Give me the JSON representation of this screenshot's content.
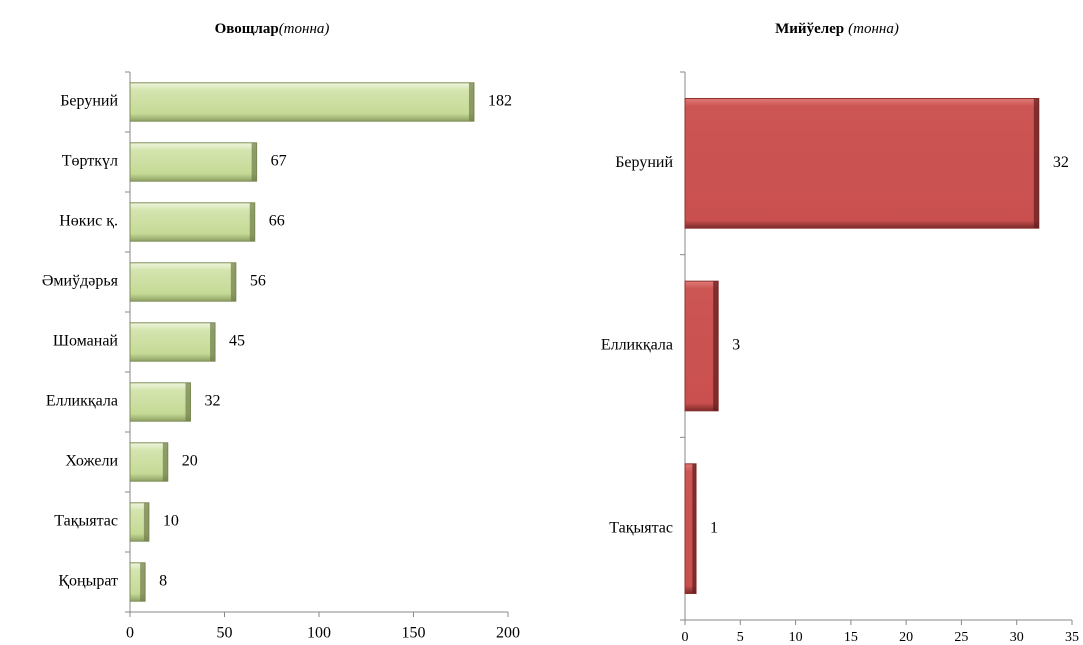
{
  "chart_data": [
    {
      "type": "bar",
      "title": "Овощлар",
      "subtitle": "(тонна)",
      "categories": [
        "Беруний",
        "Төрткүл",
        "Нөкис қ.",
        "Әмиўдәрья",
        "Шоманай",
        "Елликқала",
        "Хожели",
        "Тақыятас",
        "Қоңырат"
      ],
      "values": [
        182,
        67,
        66,
        56,
        45,
        32,
        20,
        10,
        8
      ],
      "color": "#c6da96",
      "xlim": [
        0,
        200
      ],
      "xticks": [
        0,
        50,
        100,
        150,
        200
      ]
    },
    {
      "type": "bar",
      "title": "Мийўелер",
      "subtitle": "(тонна)",
      "categories": [
        "Беруний",
        "Елликқала",
        "Тақыятас"
      ],
      "values": [
        32,
        3,
        1
      ],
      "color": "#c9504f",
      "xlim": [
        0,
        35
      ],
      "xticks": [
        0,
        5,
        10,
        15,
        20,
        25,
        30,
        35
      ]
    }
  ]
}
